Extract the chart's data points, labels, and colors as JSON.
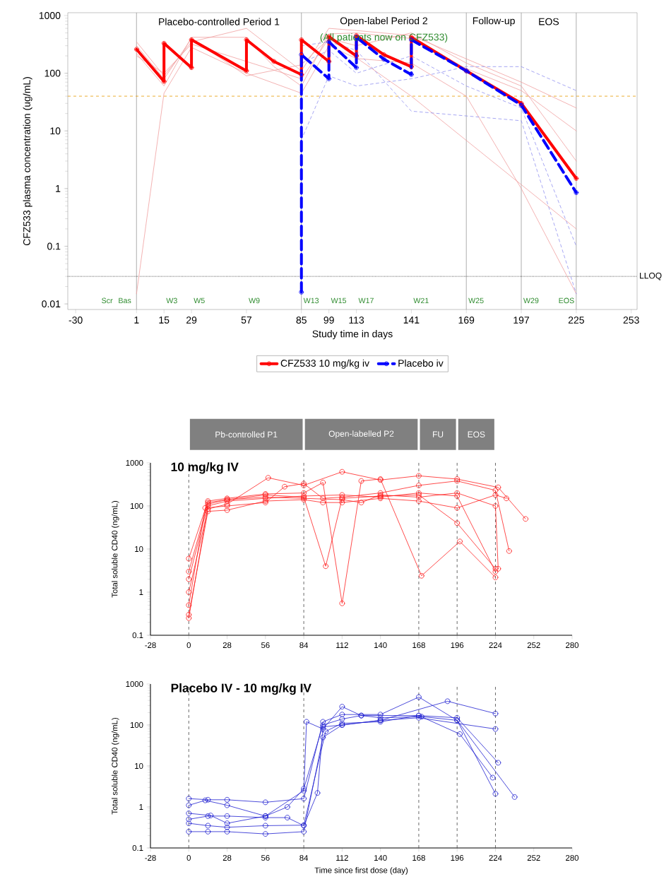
{
  "chart_data": [
    {
      "type": "line",
      "xlabel": "Study time in days",
      "ylabel": "CFZ533 plasma concentration (ug/mL)",
      "log": "y",
      "legend": "bottom",
      "xlim": [
        -34,
        256
      ],
      "ylim": [
        0.008,
        1120
      ],
      "xticks": [
        -30,
        1,
        15,
        29,
        57,
        85,
        99,
        113,
        141,
        169,
        197,
        225,
        253
      ],
      "yticks": [
        0.01,
        0.1,
        1,
        10,
        100,
        1000
      ],
      "ref_lines": [
        {
          "axis": "x",
          "value": 1,
          "color": "#999999",
          "line_style": "solid"
        },
        {
          "axis": "x",
          "value": 85,
          "color": "#999999",
          "line_style": "solid"
        },
        {
          "axis": "x",
          "value": 169,
          "color": "#999999",
          "line_style": "solid"
        },
        {
          "axis": "x",
          "value": 197,
          "color": "#999999",
          "line_style": "solid"
        },
        {
          "axis": "x",
          "value": 225,
          "color": "#999999",
          "line_style": "solid"
        },
        {
          "axis": "y",
          "value": 40,
          "color": "#e69a00",
          "line_style": "dashed"
        },
        {
          "axis": "y",
          "value": 0.03,
          "color": "#000000",
          "line_style": "dotted",
          "label": "LLOQ"
        }
      ],
      "annotations": [
        "Placebo-controlled Period 1",
        "Open-label Period 2",
        "Follow-up",
        "EOS",
        "(All patients now on CFZ533)",
        "Scr",
        "Bas",
        "W3",
        "W5",
        "W9",
        "W13",
        "W15",
        "W17",
        "W21",
        "W25",
        "W29",
        "EOS"
      ],
      "series": [
        {
          "color": "#f0a0a0",
          "x": [
            1,
            15,
            29,
            57,
            71,
            85,
            99,
            113,
            141,
            169,
            197,
            225
          ],
          "values": [
            220,
            60,
            420,
            420,
            130,
            60,
            480,
            500,
            400,
            120,
            50,
            10
          ]
        },
        {
          "color": "#f0a0a0",
          "x": [
            1,
            15,
            29,
            57,
            85,
            99,
            113,
            141,
            169,
            197,
            225
          ],
          "values": [
            0.015,
            45,
            280,
            100,
            45,
            300,
            180,
            150,
            40,
            1,
            0.015
          ]
        },
        {
          "color": "#f0a0a0",
          "x": [
            1,
            15,
            29,
            57,
            85,
            99,
            113,
            141,
            197,
            225
          ],
          "values": [
            350,
            90,
            350,
            600,
            110,
            600,
            550,
            450,
            70,
            25
          ]
        },
        {
          "color": "#f0a0a0",
          "x": [
            1,
            15,
            29,
            57,
            85,
            99,
            141,
            225
          ],
          "values": [
            200,
            100,
            320,
            160,
            80,
            400,
            40,
            0.2
          ]
        },
        {
          "color": "#f0a0a0",
          "x": [
            1,
            15,
            29,
            57,
            85,
            99,
            113,
            141,
            169,
            197,
            225
          ],
          "values": [
            300,
            80,
            400,
            90,
            140,
            400,
            300,
            500,
            150,
            60,
            3
          ]
        },
        {
          "color": "#9090f0",
          "line_style": "dashed",
          "x": [
            85,
            99,
            113,
            141,
            169,
            197,
            225
          ],
          "values": [
            7,
            90,
            60,
            80,
            130,
            130,
            50
          ]
        },
        {
          "color": "#9090f0",
          "line_style": "dashed",
          "x": [
            85,
            99,
            113,
            141,
            197,
            225
          ],
          "values": [
            300,
            350,
            250,
            22,
            15,
            0.015
          ]
        },
        {
          "color": "#9090f0",
          "line_style": "dashed",
          "x": [
            85,
            99,
            113,
            141,
            169,
            197,
            225
          ],
          "values": [
            150,
            250,
            100,
            200,
            60,
            25,
            0.1
          ]
        },
        {
          "name": "CFZ533 10 mg/kg iv",
          "color": "#ff0000",
          "marker": "circle",
          "x": [
            1,
            15,
            15,
            29,
            29,
            57,
            57,
            71,
            85,
            85,
            99,
            99,
            113,
            113,
            127,
            141,
            141,
            169,
            197,
            225
          ],
          "values": [
            260,
            72,
            330,
            125,
            380,
            110,
            380,
            160,
            95,
            380,
            160,
            430,
            200,
            450,
            210,
            130,
            420,
            110,
            30,
            1.5
          ]
        },
        {
          "name": "Placebo iv",
          "color": "#0000ff",
          "marker": "circle",
          "line_style": "dashed",
          "x": [
            85,
            85,
            99,
            99,
            113,
            113,
            127,
            141,
            141,
            169,
            197,
            225
          ],
          "values": [
            0.016,
            210,
            80,
            350,
            125,
            420,
            175,
            95,
            380,
            110,
            28,
            0.85
          ]
        }
      ]
    },
    {
      "type": "line",
      "title": "10 mg/kg IV",
      "ylabel": "Total soluble CD40 (ng/mL)",
      "log": "y",
      "marker": "circle",
      "xlim": [
        -28,
        280
      ],
      "ylim": [
        0.1,
        1000
      ],
      "xticks": [
        -28,
        0,
        28,
        56,
        84,
        112,
        140,
        168,
        196,
        224,
        252,
        280
      ],
      "yticks": [
        0.1,
        1,
        10,
        100,
        1000
      ],
      "ref_lines": [
        {
          "axis": "x",
          "value": 0,
          "color": "#444444",
          "line_style": "dashed"
        },
        {
          "axis": "x",
          "value": 84,
          "color": "#444444",
          "line_style": "dashed"
        },
        {
          "axis": "x",
          "value": 168,
          "color": "#444444",
          "line_style": "dashed"
        },
        {
          "axis": "x",
          "value": 196,
          "color": "#444444",
          "line_style": "dashed"
        },
        {
          "axis": "x",
          "value": 224,
          "color": "#444444",
          "line_style": "dashed"
        }
      ],
      "annotations": [
        "Pb-controlled P1",
        "Open-labelled P2",
        "FU",
        "EOS"
      ],
      "series": [
        {
          "color": "#ff2020",
          "x": [
            0,
            14,
            28,
            56,
            84,
            112,
            140,
            168,
            196,
            224
          ],
          "values": [
            0.25,
            100,
            130,
            150,
            170,
            180,
            160,
            200,
            170,
            3
          ]
        },
        {
          "color": "#ff2020",
          "x": [
            0,
            14,
            28,
            56,
            84,
            100,
            112,
            140,
            168,
            196,
            224
          ],
          "values": [
            3,
            120,
            140,
            180,
            160,
            4,
            150,
            170,
            180,
            40,
            3.5
          ]
        },
        {
          "color": "#ff2020",
          "x": [
            0,
            14,
            28,
            58,
            84,
            112,
            140,
            168,
            196,
            226,
            246
          ],
          "values": [
            1,
            85,
            110,
            450,
            300,
            620,
            400,
            500,
            420,
            270,
            50
          ]
        },
        {
          "color": "#ff2020",
          "x": [
            0,
            14,
            28,
            56,
            84,
            98,
            112,
            126,
            140,
            170,
            198,
            224
          ],
          "values": [
            6,
            130,
            150,
            190,
            200,
            350,
            0.55,
            380,
            420,
            2.4,
            15,
            2.2
          ]
        },
        {
          "color": "#ff2020",
          "x": [
            0,
            12,
            28,
            56,
            70,
            84,
            98,
            112,
            140,
            168,
            196,
            224,
            234
          ],
          "values": [
            0.5,
            90,
            100,
            120,
            280,
            330,
            150,
            160,
            200,
            300,
            380,
            230,
            9
          ]
        },
        {
          "color": "#ff2020",
          "x": [
            0,
            14,
            28,
            56,
            84,
            112,
            126,
            140,
            168,
            196,
            224,
            226
          ],
          "values": [
            2,
            110,
            140,
            160,
            150,
            140,
            120,
            180,
            160,
            200,
            100,
            3.5
          ]
        },
        {
          "color": "#ff2020",
          "x": [
            0,
            14,
            28,
            56,
            84,
            98,
            112,
            140,
            168,
            196,
            224,
            232
          ],
          "values": [
            0.3,
            75,
            80,
            130,
            140,
            120,
            120,
            150,
            130,
            90,
            180,
            150
          ]
        }
      ]
    },
    {
      "type": "line",
      "title": "Placebo IV - 10 mg/kg IV",
      "xlabel": "Time since first dose (day)",
      "ylabel": "Total soluble CD40 (ng/mL)",
      "log": "y",
      "marker": "circle",
      "xlim": [
        -28,
        280
      ],
      "ylim": [
        0.1,
        1000
      ],
      "xticks": [
        -28,
        0,
        28,
        56,
        84,
        112,
        140,
        168,
        196,
        224,
        252,
        280
      ],
      "yticks": [
        0.1,
        1,
        10,
        100,
        1000
      ],
      "ref_lines": [
        {
          "axis": "x",
          "value": 0,
          "color": "#444444",
          "line_style": "dashed"
        },
        {
          "axis": "x",
          "value": 84,
          "color": "#444444",
          "line_style": "dashed"
        },
        {
          "axis": "x",
          "value": 168,
          "color": "#444444",
          "line_style": "dashed"
        },
        {
          "axis": "x",
          "value": 196,
          "color": "#444444",
          "line_style": "dashed"
        },
        {
          "axis": "x",
          "value": 224,
          "color": "#444444",
          "line_style": "dashed"
        }
      ],
      "series": [
        {
          "color": "#2020d0",
          "x": [
            0,
            14,
            28,
            56,
            84,
            98,
            112,
            140,
            168,
            196,
            224
          ],
          "values": [
            1.6,
            1.5,
            1.5,
            1.3,
            1.6,
            120,
            180,
            180,
            480,
            130,
            2.1
          ]
        },
        {
          "color": "#2020d0",
          "x": [
            0,
            14,
            28,
            56,
            84,
            98,
            112,
            140,
            168,
            224
          ],
          "values": [
            0.25,
            0.25,
            0.25,
            0.22,
            0.25,
            50,
            100,
            130,
            150,
            80
          ]
        },
        {
          "color": "#2020d0",
          "x": [
            0,
            14,
            28,
            56,
            72,
            84,
            94,
            98,
            112,
            140,
            189,
            224
          ],
          "values": [
            0.5,
            0.6,
            0.6,
            0.55,
            0.55,
            0.35,
            2.2,
            90,
            100,
            130,
            380,
            190
          ]
        },
        {
          "color": "#2020d0",
          "x": [
            0,
            12,
            28,
            56,
            84,
            86,
            98,
            112,
            126,
            168,
            196,
            226
          ],
          "values": [
            1.1,
            1.45,
            1.1,
            0.6,
            2.5,
            120,
            80,
            280,
            170,
            170,
            150,
            12
          ]
        },
        {
          "color": "#2020d0",
          "x": [
            0,
            14,
            28,
            56,
            84,
            100,
            112,
            140,
            168,
            198,
            222
          ],
          "values": [
            0.4,
            0.35,
            0.32,
            0.35,
            0.36,
            70,
            110,
            120,
            170,
            60,
            5.2
          ]
        },
        {
          "color": "#2020d0",
          "x": [
            0,
            16,
            28,
            56,
            72,
            84,
            98,
            112,
            126,
            140,
            170,
            196,
            238
          ],
          "values": [
            0.7,
            0.62,
            0.4,
            0.6,
            1.0,
            2.8,
            100,
            140,
            170,
            150,
            160,
            130,
            1.75
          ]
        }
      ]
    }
  ]
}
